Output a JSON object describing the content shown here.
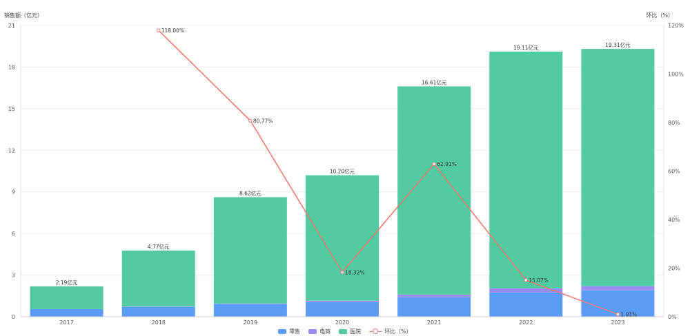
{
  "chart_data": {
    "type": "bar",
    "stacked": true,
    "categories": [
      "2017",
      "2018",
      "2019",
      "2020",
      "2021",
      "2022",
      "2023"
    ],
    "y_left_label": "销售额（亿元）",
    "y_right_label": "环比（%）",
    "y_left_ticks": [
      "0",
      "3",
      "6",
      "9",
      "12",
      "15",
      "18",
      "21"
    ],
    "y_right_ticks": [
      "0%",
      "20%",
      "40%",
      "60%",
      "80%",
      "100%",
      "120%"
    ],
    "ylim_left": [
      0,
      21
    ],
    "ylim_right": [
      0,
      120
    ],
    "series": [
      {
        "name": "零售",
        "color": "#5b9cf8",
        "values": [
          0.55,
          0.7,
          0.9,
          1.05,
          1.4,
          1.75,
          1.9
        ]
      },
      {
        "name": "电商",
        "color": "#9b8cf5",
        "values": [
          0.0,
          0.03,
          0.05,
          0.1,
          0.2,
          0.3,
          0.3
        ]
      },
      {
        "name": "医院",
        "color": "#52cba2",
        "values": [
          1.64,
          4.04,
          7.67,
          9.05,
          15.01,
          17.06,
          17.11
        ]
      }
    ],
    "total_labels": [
      "2.19亿元",
      "4.77亿元",
      "8.62亿元",
      "10.20亿元",
      "16.61亿元",
      "19.11亿元",
      "19.31亿元"
    ],
    "line_series": {
      "name": "环比（%）",
      "color": "#ee7b74",
      "values": [
        null,
        118.0,
        80.77,
        18.32,
        62.91,
        15.07,
        1.01
      ],
      "labels": [
        "",
        "118.00%",
        "80.77%",
        "18.32%",
        "62.91%",
        "15.07%",
        "1.01%"
      ]
    },
    "grid": true,
    "legend_position": "bottom-center"
  }
}
